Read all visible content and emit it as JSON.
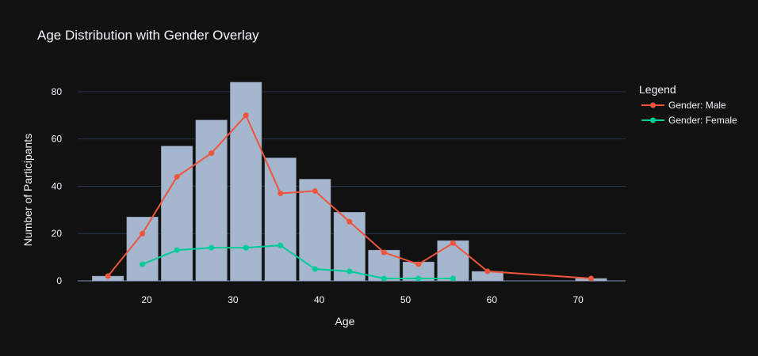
{
  "chart_data": {
    "type": "bar",
    "title": "Age Distribution with Gender Overlay",
    "xlabel": "Age",
    "ylabel": "Number of Participants",
    "xlim": [
      12,
      75.5
    ],
    "ylim": [
      0,
      91
    ],
    "xticks": [
      20,
      30,
      40,
      50,
      60,
      70
    ],
    "yticks": [
      0,
      20,
      40,
      60,
      80
    ],
    "grid": true,
    "legend_title": "Legend",
    "legend_position": "right",
    "histogram": {
      "bin_centers": [
        15.5,
        19.5,
        23.5,
        27.5,
        31.5,
        35.5,
        39.5,
        43.5,
        47.5,
        51.5,
        55.5,
        59.5,
        71.5
      ],
      "bin_width": 4,
      "values": [
        2,
        27,
        57,
        68,
        84,
        52,
        43,
        29,
        13,
        8,
        17,
        4,
        1
      ],
      "color": "#a5b6cf"
    },
    "series": [
      {
        "name": "Gender: Male",
        "color": "#ef553b",
        "x": [
          15.5,
          19.5,
          23.5,
          27.5,
          31.5,
          35.5,
          39.5,
          43.5,
          47.5,
          51.5,
          55.5,
          59.5,
          71.5
        ],
        "y": [
          2,
          20,
          44,
          54,
          70,
          37,
          38,
          25,
          12,
          7,
          16,
          4,
          1
        ]
      },
      {
        "name": "Gender: Female",
        "color": "#00cc96",
        "x": [
          19.5,
          23.5,
          27.5,
          31.5,
          35.5,
          39.5,
          43.5,
          47.5,
          51.5,
          55.5
        ],
        "y": [
          7,
          13,
          14,
          14,
          15,
          5,
          4,
          1,
          1,
          1
        ]
      }
    ]
  }
}
